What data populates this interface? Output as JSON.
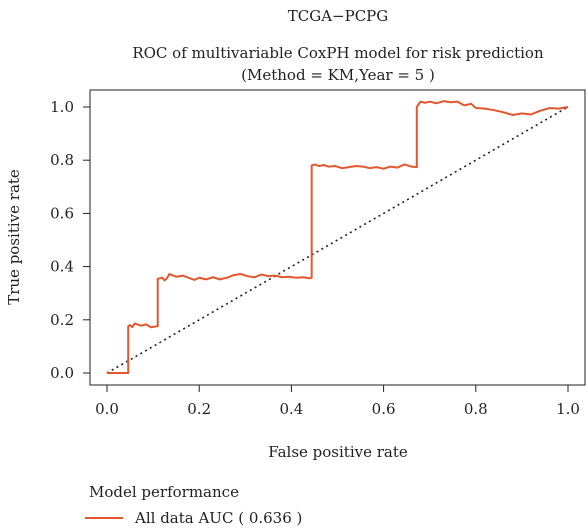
{
  "chart_data": {
    "type": "line",
    "suptitle": "TCGA−PCPG",
    "title_line1": "ROC of multivariable CoxPH model for risk prediction",
    "title_line2": "(Method = KM,Year = 5 )",
    "xlabel": "False positive rate",
    "ylabel": "True positive rate",
    "xlim": [
      0,
      1
    ],
    "ylim": [
      0,
      1
    ],
    "x_ticks": [
      0.0,
      0.2,
      0.4,
      0.6,
      0.8,
      1.0
    ],
    "y_ticks": [
      0.0,
      0.2,
      0.4,
      0.6,
      0.8,
      1.0
    ],
    "x_tick_labels": [
      "0.0",
      "0.2",
      "0.4",
      "0.6",
      "0.8",
      "1.0"
    ],
    "y_tick_labels": [
      "0.0",
      "0.2",
      "0.4",
      "0.6",
      "0.8",
      "1.0"
    ],
    "grid": false,
    "legend": {
      "position": "bottom-left",
      "title": "Model performance"
    },
    "reference_line": {
      "style": "dotted",
      "from": [
        0,
        0
      ],
      "to": [
        1,
        1
      ],
      "color": "#231f20"
    },
    "series": [
      {
        "name": "All data AUC ( 0.636 )",
        "color": "#e4572e",
        "x": [
          0.0,
          0.046,
          0.046,
          0.05,
          0.055,
          0.06,
          0.075,
          0.085,
          0.095,
          0.11,
          0.11,
          0.12,
          0.125,
          0.13,
          0.135,
          0.15,
          0.165,
          0.18,
          0.19,
          0.2,
          0.215,
          0.23,
          0.245,
          0.26,
          0.275,
          0.29,
          0.305,
          0.32,
          0.335,
          0.35,
          0.365,
          0.38,
          0.395,
          0.41,
          0.425,
          0.44,
          0.444,
          0.444,
          0.45,
          0.46,
          0.47,
          0.48,
          0.495,
          0.51,
          0.525,
          0.54,
          0.555,
          0.57,
          0.585,
          0.6,
          0.615,
          0.63,
          0.645,
          0.66,
          0.672,
          0.672,
          0.68,
          0.69,
          0.7,
          0.715,
          0.73,
          0.745,
          0.76,
          0.775,
          0.79,
          0.8,
          0.82,
          0.84,
          0.86,
          0.88,
          0.9,
          0.92,
          0.94,
          0.96,
          0.98,
          1.0
        ],
        "y": [
          0.0,
          0.0,
          0.176,
          0.18,
          0.172,
          0.186,
          0.178,
          0.183,
          0.172,
          0.176,
          0.354,
          0.358,
          0.348,
          0.356,
          0.372,
          0.362,
          0.366,
          0.356,
          0.35,
          0.358,
          0.352,
          0.36,
          0.352,
          0.358,
          0.368,
          0.372,
          0.364,
          0.36,
          0.37,
          0.364,
          0.366,
          0.36,
          0.362,
          0.358,
          0.36,
          0.356,
          0.358,
          0.78,
          0.784,
          0.778,
          0.782,
          0.776,
          0.778,
          0.77,
          0.774,
          0.778,
          0.776,
          0.77,
          0.774,
          0.768,
          0.776,
          0.772,
          0.784,
          0.776,
          0.774,
          1.0,
          1.02,
          1.016,
          1.02,
          1.014,
          1.022,
          1.018,
          1.02,
          1.006,
          1.012,
          0.996,
          0.994,
          0.988,
          0.98,
          0.97,
          0.976,
          0.972,
          0.986,
          0.996,
          0.994,
          1.0
        ]
      }
    ]
  }
}
